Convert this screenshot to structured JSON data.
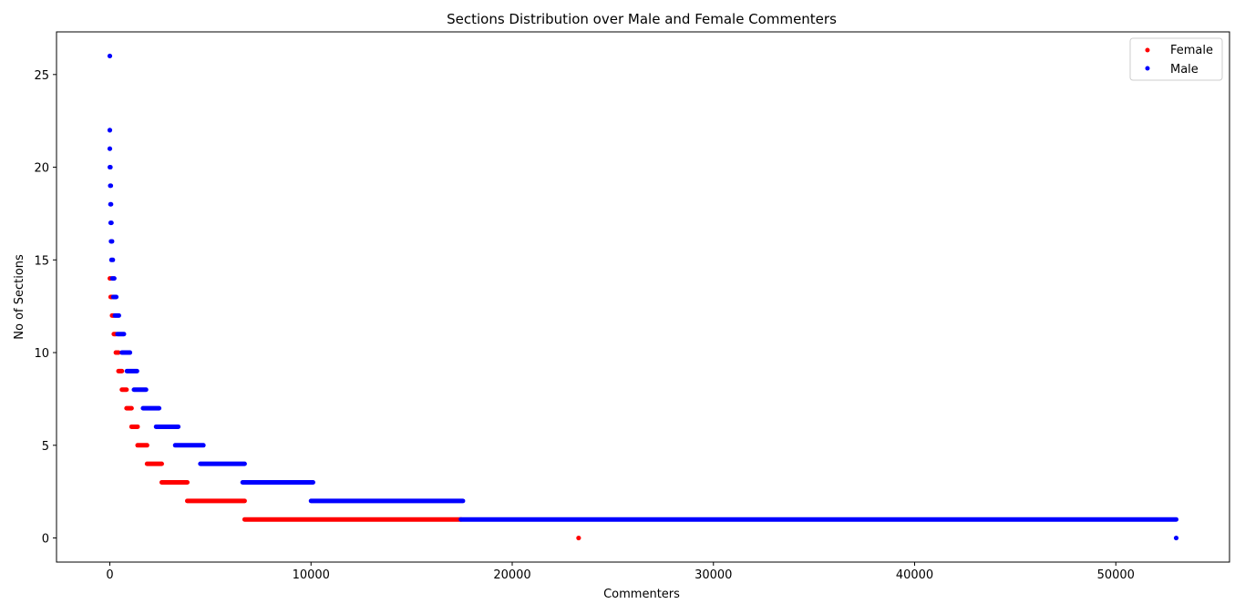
{
  "chart_data": {
    "type": "scatter",
    "title": "Sections Distribution over Male and Female Commenters",
    "xlabel": "Commenters",
    "ylabel": "No of Sections",
    "xlim": [
      -2650,
      55650
    ],
    "ylim": [
      -1.3,
      27.3
    ],
    "xticks": [
      0,
      10000,
      20000,
      30000,
      40000,
      50000
    ],
    "yticks": [
      0,
      5,
      10,
      15,
      20,
      25
    ],
    "grid": false,
    "legend_position": "top-right",
    "series": [
      {
        "name": "Female",
        "color": "#ff0000",
        "runs": [
          {
            "y": 14,
            "x_start": 0,
            "x_end": 40
          },
          {
            "y": 13,
            "x_start": 40,
            "x_end": 110
          },
          {
            "y": 12,
            "x_start": 110,
            "x_end": 200
          },
          {
            "y": 11,
            "x_start": 200,
            "x_end": 300
          },
          {
            "y": 10,
            "x_start": 300,
            "x_end": 430
          },
          {
            "y": 9,
            "x_start": 430,
            "x_end": 600
          },
          {
            "y": 8,
            "x_start": 600,
            "x_end": 830
          },
          {
            "y": 7,
            "x_start": 830,
            "x_end": 1080
          },
          {
            "y": 6,
            "x_start": 1080,
            "x_end": 1380
          },
          {
            "y": 5,
            "x_start": 1380,
            "x_end": 1850
          },
          {
            "y": 4,
            "x_start": 1850,
            "x_end": 2580
          },
          {
            "y": 3,
            "x_start": 2580,
            "x_end": 3850
          },
          {
            "y": 2,
            "x_start": 3850,
            "x_end": 6700
          },
          {
            "y": 1,
            "x_start": 6700,
            "x_end": 17450
          }
        ],
        "points": [
          {
            "x": 23300,
            "y": 0
          }
        ]
      },
      {
        "name": "Male",
        "color": "#0000ff",
        "runs": [
          {
            "y": 20,
            "x_start": 0,
            "x_end": 30
          },
          {
            "y": 19,
            "x_start": 20,
            "x_end": 50
          },
          {
            "y": 18,
            "x_start": 30,
            "x_end": 60
          },
          {
            "y": 17,
            "x_start": 40,
            "x_end": 80
          },
          {
            "y": 16,
            "x_start": 60,
            "x_end": 110
          },
          {
            "y": 15,
            "x_start": 80,
            "x_end": 150
          },
          {
            "y": 14,
            "x_start": 120,
            "x_end": 220
          },
          {
            "y": 13,
            "x_start": 170,
            "x_end": 320
          },
          {
            "y": 12,
            "x_start": 250,
            "x_end": 450
          },
          {
            "y": 11,
            "x_start": 380,
            "x_end": 700
          },
          {
            "y": 10,
            "x_start": 600,
            "x_end": 1000
          },
          {
            "y": 9,
            "x_start": 850,
            "x_end": 1350
          },
          {
            "y": 8,
            "x_start": 1200,
            "x_end": 1800
          },
          {
            "y": 7,
            "x_start": 1650,
            "x_end": 2450
          },
          {
            "y": 6,
            "x_start": 2300,
            "x_end": 3400
          },
          {
            "y": 5,
            "x_start": 3250,
            "x_end": 4650
          },
          {
            "y": 4,
            "x_start": 4500,
            "x_end": 6700
          },
          {
            "y": 3,
            "x_start": 6600,
            "x_end": 10100
          },
          {
            "y": 2,
            "x_start": 10000,
            "x_end": 17550
          },
          {
            "y": 1,
            "x_start": 17450,
            "x_end": 53000
          }
        ],
        "points": [
          {
            "x": 0,
            "y": 26
          },
          {
            "x": 0,
            "y": 22
          },
          {
            "x": 0,
            "y": 21
          },
          {
            "x": 53000,
            "y": 0
          }
        ]
      }
    ]
  }
}
